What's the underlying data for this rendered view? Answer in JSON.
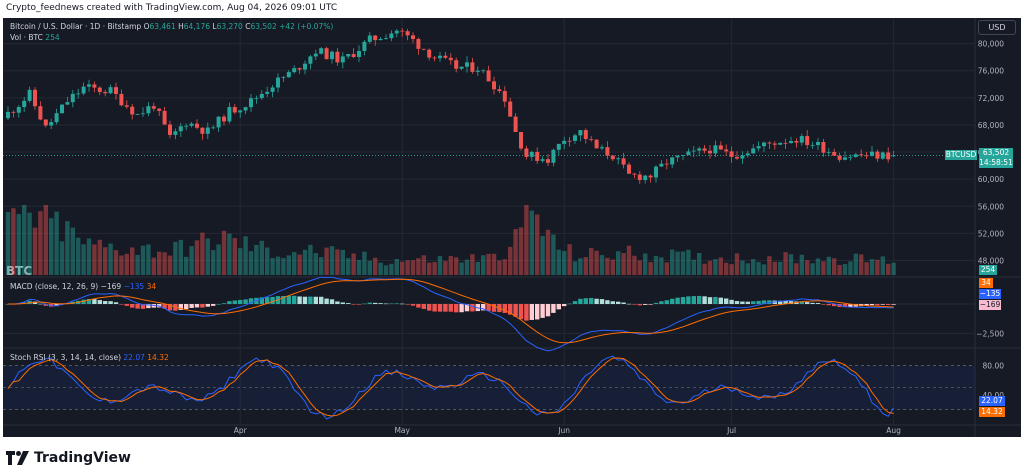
{
  "caption": "Crypto_feednews created with TradingView.com, Aug 04, 2026 09:01 UTC",
  "footer_brand": "TradingView",
  "currency_button": "USD",
  "watermark": "BTC",
  "legend": {
    "symbol": "Bitcoin / U.S. Dollar · 1D · Bitstamp",
    "o_label": "O",
    "o": "63,461",
    "h_label": "H",
    "h": "64,176",
    "l_label": "L",
    "l": "63,270",
    "c_label": "C",
    "c": "63,502",
    "change": "+42 (+0.07%)",
    "vol_label": "Vol · BTC",
    "vol": "254",
    "macd_label": "MACD (close, 12, 26, 9)",
    "macd_hist": "−169",
    "macd_line": "−135",
    "macd_signal": "34",
    "rsi_label": "Stoch RSI (3, 3, 14, 14, close)",
    "rsi_k": "22.07",
    "rsi_d": "14.32"
  },
  "badges": {
    "ticker": "BTCUSD",
    "price": "63,502",
    "countdown": "14:58:51",
    "volume": "254",
    "macd_signal": "34",
    "macd_line": "−135",
    "macd_hist": "−169",
    "rsi_k": "22.07",
    "rsi_d": "14.32"
  },
  "colors": {
    "up": "#26a69a",
    "down": "#ef5350",
    "macd": "#2962ff",
    "signal": "#ff6d00",
    "rsi_k": "#2962ff",
    "rsi_d": "#ff6d00",
    "background": "#161a25",
    "grid": "#242833"
  },
  "chart_data": {
    "type": "candlestick",
    "price_axis": {
      "ticks": [
        "80,000",
        "76,000",
        "72,000",
        "68,000",
        "64,000",
        "60,000",
        "56,000",
        "52,000",
        "48,000"
      ],
      "values": [
        80000,
        76000,
        72000,
        68000,
        64000,
        60000,
        56000,
        52000,
        48000
      ],
      "range": [
        46300,
        82600
      ]
    },
    "macd_axis": {
      "ticks": [
        "−2,500"
      ],
      "values": [
        -2500
      ]
    },
    "rsi_axis": {
      "ticks": [
        "80.00",
        "40.00"
      ],
      "values": [
        80,
        40
      ],
      "bands": [
        80,
        20
      ]
    },
    "time_axis": {
      "labels": [
        "Apr",
        "May",
        "Jun",
        "Jul",
        "Aug"
      ],
      "label_day_index": [
        43,
        73,
        103,
        134,
        164
      ]
    },
    "current_price": 63502,
    "last_ohlc": {
      "open": 63461,
      "high": 64176,
      "low": 63270,
      "close": 63502
    },
    "anchors": [
      [
        0,
        69000
      ],
      [
        5,
        72500
      ],
      [
        8,
        67500
      ],
      [
        12,
        71500
      ],
      [
        15,
        73500
      ],
      [
        20,
        73000
      ],
      [
        25,
        69500
      ],
      [
        28,
        71000
      ],
      [
        31,
        66000
      ],
      [
        34,
        68500
      ],
      [
        38,
        67000
      ],
      [
        42,
        70000
      ],
      [
        46,
        71500
      ],
      [
        50,
        74000
      ],
      [
        54,
        76000
      ],
      [
        58,
        79000
      ],
      [
        63,
        77500
      ],
      [
        68,
        80500
      ],
      [
        73,
        82000
      ],
      [
        76,
        80500
      ],
      [
        80,
        78000
      ],
      [
        84,
        76500
      ],
      [
        88,
        76500
      ],
      [
        91,
        74000
      ],
      [
        93,
        72000
      ],
      [
        95,
        67000
      ],
      [
        97,
        63500
      ],
      [
        101,
        63000
      ],
      [
        104,
        66000
      ],
      [
        107,
        67000
      ],
      [
        110,
        64500
      ],
      [
        113,
        63500
      ],
      [
        116,
        60500
      ],
      [
        120,
        60500
      ],
      [
        123,
        62500
      ],
      [
        127,
        63500
      ],
      [
        131,
        64500
      ],
      [
        135,
        63500
      ],
      [
        139,
        64500
      ],
      [
        143,
        65500
      ],
      [
        147,
        66000
      ],
      [
        151,
        65000
      ],
      [
        155,
        63500
      ],
      [
        160,
        63500
      ],
      [
        164,
        63500
      ]
    ],
    "volume_profile": [
      [
        0,
        2.6
      ],
      [
        8,
        2.2
      ],
      [
        15,
        1.2
      ],
      [
        30,
        1.0
      ],
      [
        40,
        1.5
      ],
      [
        50,
        0.9
      ],
      [
        55,
        1.0
      ],
      [
        70,
        0.6
      ],
      [
        90,
        0.7
      ],
      [
        95,
        1.6
      ],
      [
        98,
        2.3
      ],
      [
        101,
        1.3
      ],
      [
        105,
        0.8
      ],
      [
        115,
        0.9
      ],
      [
        130,
        0.7
      ],
      [
        150,
        0.7
      ],
      [
        164,
        0.6
      ]
    ],
    "volume_peaks": {
      "0": 0.9,
      "96": 1.0,
      "97": 0.92
    },
    "volume_scale": {
      "max_btc": 3000
    },
    "macd_range": [
      -3400,
      1700
    ],
    "candles_count": 165
  }
}
